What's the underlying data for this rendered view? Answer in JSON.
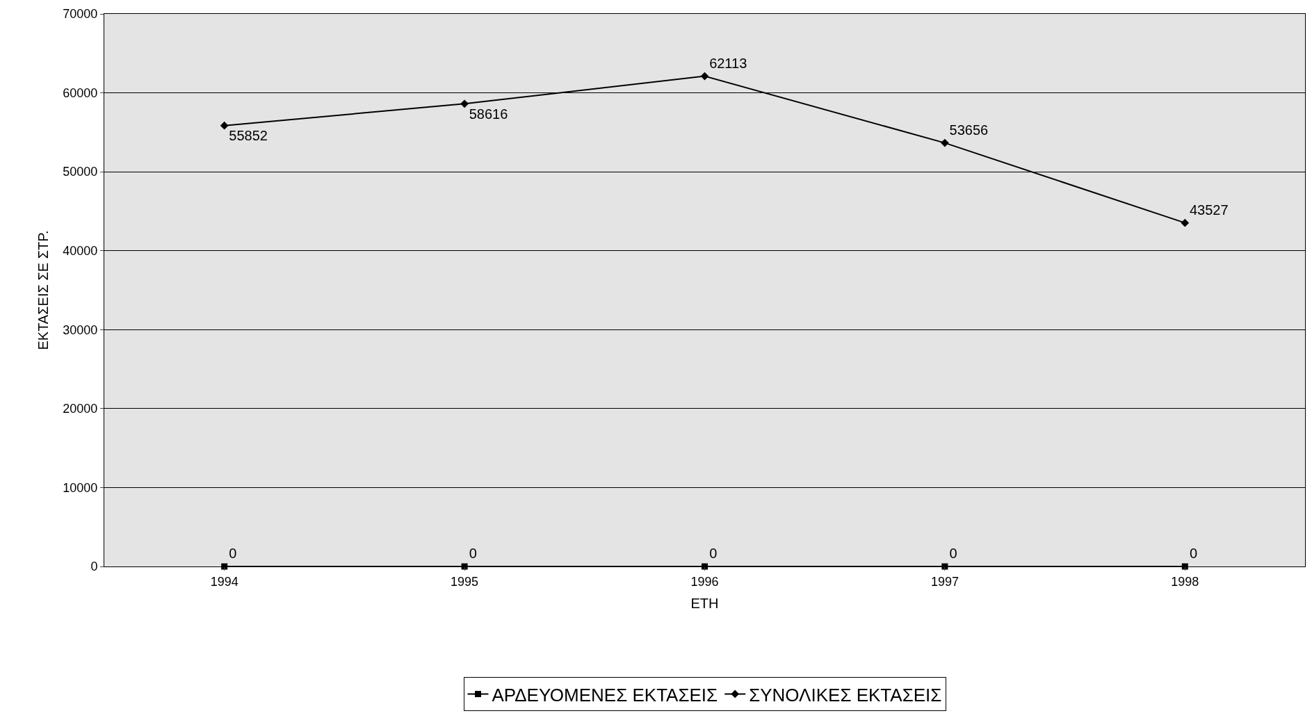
{
  "chart_data": {
    "type": "line",
    "xlabel": "ΕΤΗ",
    "ylabel": "ΕΚΤΑΣΕΙΣ ΣΕ ΣΤΡ.",
    "categories": [
      "1994",
      "1995",
      "1996",
      "1997",
      "1998"
    ],
    "series": [
      {
        "name": "ΑΡΔΕΥΟΜΕΝΕΣ ΕΚΤΑΣΕΙΣ",
        "color": "#000000",
        "marker": "square",
        "values": [
          0,
          0,
          0,
          0,
          0
        ]
      },
      {
        "name": "ΣΥΝΟΛΙΚΕΣ ΕΚΤΑΣΕΙΣ",
        "color": "#000000",
        "marker": "diamond",
        "values": [
          55852,
          58616,
          62113,
          53656,
          43527
        ]
      }
    ],
    "ylim": [
      0,
      70000
    ],
    "yticks": [
      0,
      10000,
      20000,
      30000,
      40000,
      50000,
      60000,
      70000
    ],
    "grid": "y",
    "legend": "bottom",
    "data_labels": true,
    "line_style": "solid"
  }
}
